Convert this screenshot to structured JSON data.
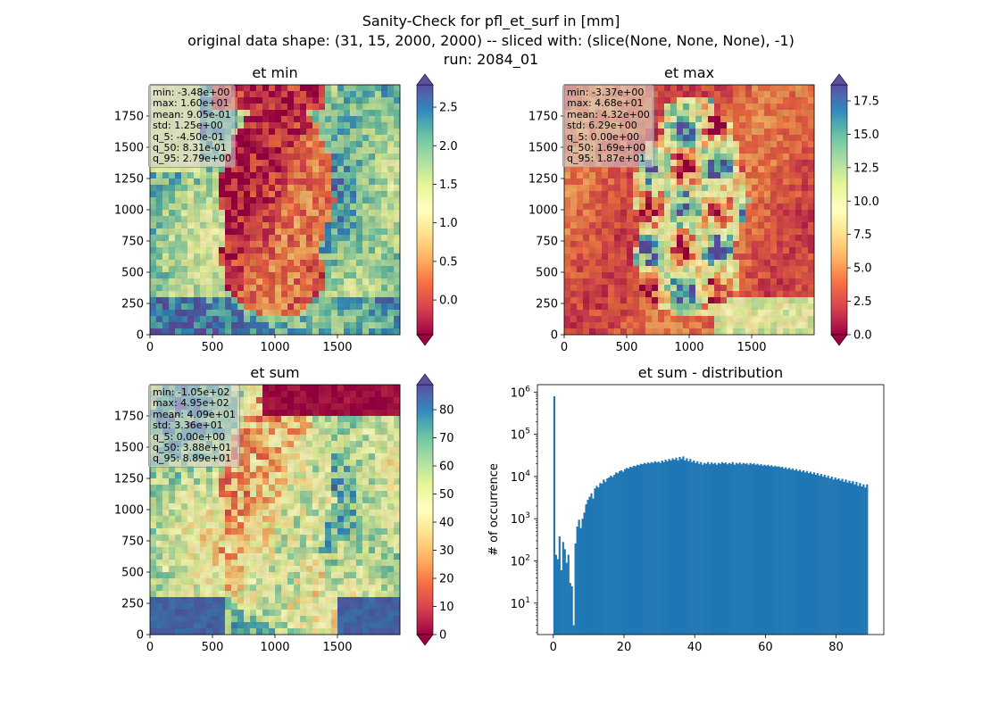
{
  "suptitle": {
    "line1": "Sanity-Check for pfl_et_surf in [mm]",
    "line2": "original data shape: (31, 15, 2000, 2000) -- sliced with: (slice(None, None, None), -1)",
    "line3": "run: 2084_01"
  },
  "chart_data": [
    {
      "type": "heatmap",
      "title": "et min",
      "cmap": "Spectral",
      "xticks": [
        "0",
        "500",
        "1000",
        "1500"
      ],
      "yticks": [
        "0",
        "250",
        "500",
        "750",
        "1000",
        "1250",
        "1500",
        "1750"
      ],
      "colorbar": {
        "vmin": -0.45,
        "vmax": 2.79,
        "ticks": [
          "0.0",
          "0.5",
          "1.0",
          "1.5",
          "2.0",
          "2.5"
        ],
        "tick_values": [
          0,
          0.5,
          1,
          1.5,
          2,
          2.5
        ]
      },
      "stats": [
        "min: -3.48e+00",
        "max: 1.60e+01",
        "mean: 9.05e-01",
        "std: 1.25e+00",
        "q_5: -4.50e-01",
        "q_50: 8.31e-01",
        "q_95: 2.79e+00"
      ]
    },
    {
      "type": "heatmap",
      "title": "et max",
      "cmap": "Spectral",
      "xticks": [
        "0",
        "500",
        "1000",
        "1500"
      ],
      "yticks": [
        "0",
        "250",
        "500",
        "750",
        "1000",
        "1250",
        "1500",
        "1750"
      ],
      "colorbar": {
        "vmin": 0.0,
        "vmax": 18.7,
        "ticks": [
          "0.0",
          "2.5",
          "5.0",
          "7.5",
          "10.0",
          "12.5",
          "15.0",
          "17.5"
        ],
        "tick_values": [
          0,
          2.5,
          5,
          7.5,
          10,
          12.5,
          15,
          17.5
        ]
      },
      "stats": [
        "min: -3.37e+00",
        "max: 4.68e+01",
        "mean: 4.32e+00",
        "std: 6.29e+00",
        "q_5: 0.00e+00",
        "q_50: 1.69e+00",
        "q_95: 1.87e+01"
      ]
    },
    {
      "type": "heatmap",
      "title": "et sum",
      "cmap": "Spectral",
      "xticks": [
        "0",
        "500",
        "1000",
        "1500"
      ],
      "yticks": [
        "0",
        "250",
        "500",
        "750",
        "1000",
        "1250",
        "1500",
        "1750"
      ],
      "colorbar": {
        "vmin": 0.0,
        "vmax": 88.9,
        "ticks": [
          "0",
          "10",
          "20",
          "30",
          "40",
          "50",
          "60",
          "70",
          "80"
        ],
        "tick_values": [
          0,
          10,
          20,
          30,
          40,
          50,
          60,
          70,
          80
        ]
      },
      "stats": [
        "min: -1.05e+02",
        "max: 4.95e+02",
        "mean: 4.09e+01",
        "std: 3.36e+01",
        "q_5: 0.00e+00",
        "q_50: 3.88e+01",
        "q_95: 8.89e+01"
      ]
    },
    {
      "type": "bar",
      "title": "et sum - distribution",
      "ylabel": "# of occurrence",
      "xlabel": "",
      "yscale": "log",
      "xlim": [
        -4.5,
        93.5
      ],
      "ylim": [
        1.8,
        1500000
      ],
      "xticks": [
        0,
        20,
        40,
        60,
        80
      ],
      "yticks": [
        {
          "value": 10,
          "base": "10",
          "exp": "1"
        },
        {
          "value": 100,
          "base": "10",
          "exp": "2"
        },
        {
          "value": 1000,
          "base": "10",
          "exp": "3"
        },
        {
          "value": 10000,
          "base": "10",
          "exp": "4"
        },
        {
          "value": 100000,
          "base": "10",
          "exp": "5"
        },
        {
          "value": 1000000,
          "base": "10",
          "exp": "6"
        }
      ],
      "bar_color": "#1f77b4",
      "bins": [
        {
          "x": 0.0,
          "y": 800000
        },
        {
          "x": 0.5,
          "y": 140
        },
        {
          "x": 1.0,
          "y": 110
        },
        {
          "x": 1.5,
          "y": 380
        },
        {
          "x": 2.0,
          "y": 60
        },
        {
          "x": 2.5,
          "y": 280
        },
        {
          "x": 3.0,
          "y": 190
        },
        {
          "x": 3.5,
          "y": 90
        },
        {
          "x": 4.0,
          "y": 140
        },
        {
          "x": 4.5,
          "y": 30
        },
        {
          "x": 5.0,
          "y": 25
        },
        {
          "x": 5.5,
          "y": 3
        },
        {
          "x": 6.0,
          "y": 260
        },
        {
          "x": 6.5,
          "y": 650
        },
        {
          "x": 7.0,
          "y": 950
        },
        {
          "x": 7.5,
          "y": 600
        },
        {
          "x": 8.0,
          "y": 1000
        },
        {
          "x": 8.5,
          "y": 1400
        },
        {
          "x": 9.0,
          "y": 2200
        },
        {
          "x": 9.5,
          "y": 2800
        },
        {
          "x": 10.0,
          "y": 3300
        },
        {
          "x": 10.5,
          "y": 4000
        },
        {
          "x": 11.0,
          "y": 3000
        },
        {
          "x": 11.5,
          "y": 5200
        },
        {
          "x": 12.0,
          "y": 6000
        },
        {
          "x": 12.5,
          "y": 5500
        },
        {
          "x": 13.0,
          "y": 7000
        },
        {
          "x": 13.5,
          "y": 6800
        },
        {
          "x": 14.0,
          "y": 8500
        },
        {
          "x": 14.5,
          "y": 7500
        },
        {
          "x": 15.0,
          "y": 9000
        },
        {
          "x": 15.5,
          "y": 9500
        },
        {
          "x": 16.0,
          "y": 10500
        },
        {
          "x": 16.5,
          "y": 9800
        },
        {
          "x": 17.0,
          "y": 11000
        },
        {
          "x": 17.5,
          "y": 12500
        },
        {
          "x": 18.0,
          "y": 12000
        },
        {
          "x": 18.5,
          "y": 13500
        },
        {
          "x": 19.0,
          "y": 14000
        },
        {
          "x": 19.5,
          "y": 13000
        },
        {
          "x": 20.0,
          "y": 15000
        },
        {
          "x": 20.5,
          "y": 16000
        },
        {
          "x": 21.0,
          "y": 15500
        },
        {
          "x": 21.5,
          "y": 17000
        },
        {
          "x": 22.0,
          "y": 16500
        },
        {
          "x": 22.5,
          "y": 18000
        },
        {
          "x": 23.0,
          "y": 17500
        },
        {
          "x": 23.5,
          "y": 19000
        },
        {
          "x": 24.0,
          "y": 18500
        },
        {
          "x": 24.5,
          "y": 20000
        },
        {
          "x": 25.0,
          "y": 19500
        },
        {
          "x": 25.5,
          "y": 21000
        },
        {
          "x": 26.0,
          "y": 20000
        },
        {
          "x": 26.5,
          "y": 21500
        },
        {
          "x": 27.0,
          "y": 20500
        },
        {
          "x": 27.5,
          "y": 22000
        },
        {
          "x": 28.0,
          "y": 21000
        },
        {
          "x": 28.5,
          "y": 23000
        },
        {
          "x": 29.0,
          "y": 21500
        },
        {
          "x": 29.5,
          "y": 22500
        },
        {
          "x": 30.0,
          "y": 21000
        },
        {
          "x": 30.5,
          "y": 24000
        },
        {
          "x": 31.0,
          "y": 22000
        },
        {
          "x": 31.5,
          "y": 25000
        },
        {
          "x": 32.0,
          "y": 23000
        },
        {
          "x": 32.5,
          "y": 26000
        },
        {
          "x": 33.0,
          "y": 24000
        },
        {
          "x": 33.5,
          "y": 27000
        },
        {
          "x": 34.0,
          "y": 25000
        },
        {
          "x": 34.5,
          "y": 28000
        },
        {
          "x": 35.0,
          "y": 24000
        },
        {
          "x": 35.5,
          "y": 29000
        },
        {
          "x": 36.0,
          "y": 26000
        },
        {
          "x": 36.5,
          "y": 30000
        },
        {
          "x": 37.0,
          "y": 24000
        },
        {
          "x": 37.5,
          "y": 27000
        },
        {
          "x": 38.0,
          "y": 23000
        },
        {
          "x": 38.5,
          "y": 26000
        },
        {
          "x": 39.0,
          "y": 22000
        },
        {
          "x": 39.5,
          "y": 24000
        },
        {
          "x": 40.0,
          "y": 21000
        },
        {
          "x": 40.5,
          "y": 23000
        },
        {
          "x": 41.0,
          "y": 20000
        },
        {
          "x": 41.5,
          "y": 22000
        },
        {
          "x": 42.0,
          "y": 19000
        },
        {
          "x": 42.5,
          "y": 21000
        },
        {
          "x": 43.0,
          "y": 20000
        },
        {
          "x": 43.5,
          "y": 22000
        },
        {
          "x": 44.0,
          "y": 19500
        },
        {
          "x": 44.5,
          "y": 21500
        },
        {
          "x": 45.0,
          "y": 20000
        },
        {
          "x": 45.5,
          "y": 21000
        },
        {
          "x": 46.0,
          "y": 19000
        },
        {
          "x": 46.5,
          "y": 21000
        },
        {
          "x": 47.0,
          "y": 20000
        },
        {
          "x": 47.5,
          "y": 22000
        },
        {
          "x": 48.0,
          "y": 20500
        },
        {
          "x": 48.5,
          "y": 21500
        },
        {
          "x": 49.0,
          "y": 19500
        },
        {
          "x": 49.5,
          "y": 21000
        },
        {
          "x": 50.0,
          "y": 20000
        },
        {
          "x": 50.5,
          "y": 22000
        },
        {
          "x": 51.0,
          "y": 19000
        },
        {
          "x": 51.5,
          "y": 21000
        },
        {
          "x": 52.0,
          "y": 20000
        },
        {
          "x": 52.5,
          "y": 21500
        },
        {
          "x": 53.0,
          "y": 19500
        },
        {
          "x": 53.5,
          "y": 21000
        },
        {
          "x": 54.0,
          "y": 20000
        },
        {
          "x": 54.5,
          "y": 20500
        },
        {
          "x": 55.0,
          "y": 19000
        },
        {
          "x": 55.5,
          "y": 21000
        },
        {
          "x": 56.0,
          "y": 19500
        },
        {
          "x": 56.5,
          "y": 20500
        },
        {
          "x": 57.0,
          "y": 19000
        },
        {
          "x": 57.5,
          "y": 20000
        },
        {
          "x": 58.0,
          "y": 18500
        },
        {
          "x": 58.5,
          "y": 19500
        },
        {
          "x": 59.0,
          "y": 18000
        },
        {
          "x": 59.5,
          "y": 19000
        },
        {
          "x": 60.0,
          "y": 18000
        },
        {
          "x": 60.5,
          "y": 19000
        },
        {
          "x": 61.0,
          "y": 17500
        },
        {
          "x": 61.5,
          "y": 18500
        },
        {
          "x": 62.0,
          "y": 17000
        },
        {
          "x": 62.5,
          "y": 18000
        },
        {
          "x": 63.0,
          "y": 17000
        },
        {
          "x": 63.5,
          "y": 17500
        },
        {
          "x": 64.0,
          "y": 16500
        },
        {
          "x": 64.5,
          "y": 17000
        },
        {
          "x": 65.0,
          "y": 15500
        },
        {
          "x": 65.5,
          "y": 16500
        },
        {
          "x": 66.0,
          "y": 15000
        },
        {
          "x": 66.5,
          "y": 16000
        },
        {
          "x": 67.0,
          "y": 14500
        },
        {
          "x": 67.5,
          "y": 15500
        },
        {
          "x": 68.0,
          "y": 14000
        },
        {
          "x": 68.5,
          "y": 15000
        },
        {
          "x": 69.0,
          "y": 13500
        },
        {
          "x": 69.5,
          "y": 14500
        },
        {
          "x": 70.0,
          "y": 13000
        },
        {
          "x": 70.5,
          "y": 14000
        },
        {
          "x": 71.0,
          "y": 12500
        },
        {
          "x": 71.5,
          "y": 13500
        },
        {
          "x": 72.0,
          "y": 12000
        },
        {
          "x": 72.5,
          "y": 13000
        },
        {
          "x": 73.0,
          "y": 11500
        },
        {
          "x": 73.5,
          "y": 12500
        },
        {
          "x": 74.0,
          "y": 11000
        },
        {
          "x": 74.5,
          "y": 12000
        },
        {
          "x": 75.0,
          "y": 10500
        },
        {
          "x": 75.5,
          "y": 11500
        },
        {
          "x": 76.0,
          "y": 10000
        },
        {
          "x": 76.5,
          "y": 11000
        },
        {
          "x": 77.0,
          "y": 9500
        },
        {
          "x": 77.5,
          "y": 10500
        },
        {
          "x": 78.0,
          "y": 9000
        },
        {
          "x": 78.5,
          "y": 10000
        },
        {
          "x": 79.0,
          "y": 8500
        },
        {
          "x": 79.5,
          "y": 9500
        },
        {
          "x": 80.0,
          "y": 8500
        },
        {
          "x": 80.5,
          "y": 9000
        },
        {
          "x": 81.0,
          "y": 8000
        },
        {
          "x": 81.5,
          "y": 8800
        },
        {
          "x": 82.0,
          "y": 7500
        },
        {
          "x": 82.5,
          "y": 8500
        },
        {
          "x": 83.0,
          "y": 7200
        },
        {
          "x": 83.5,
          "y": 8000
        },
        {
          "x": 84.0,
          "y": 7000
        },
        {
          "x": 84.5,
          "y": 7800
        },
        {
          "x": 85.0,
          "y": 6500
        },
        {
          "x": 85.5,
          "y": 7500
        },
        {
          "x": 86.0,
          "y": 6000
        },
        {
          "x": 86.5,
          "y": 7000
        },
        {
          "x": 87.0,
          "y": 5800
        },
        {
          "x": 87.5,
          "y": 6500
        },
        {
          "x": 88.0,
          "y": 5500
        },
        {
          "x": 88.5,
          "y": 6500
        }
      ]
    }
  ]
}
